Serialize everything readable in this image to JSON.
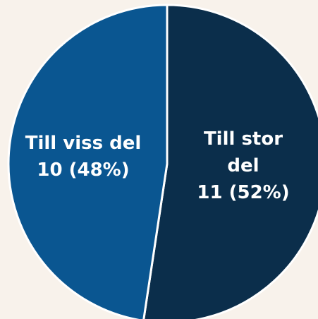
{
  "chart_data": {
    "type": "pie",
    "categories": [
      "Till stor del",
      "Till viss del"
    ],
    "values": [
      11,
      10
    ],
    "value_labels": [
      "11 (52%)",
      "10 (48%)"
    ],
    "colors": [
      "#0b2e4b",
      "#0a5691"
    ]
  }
}
